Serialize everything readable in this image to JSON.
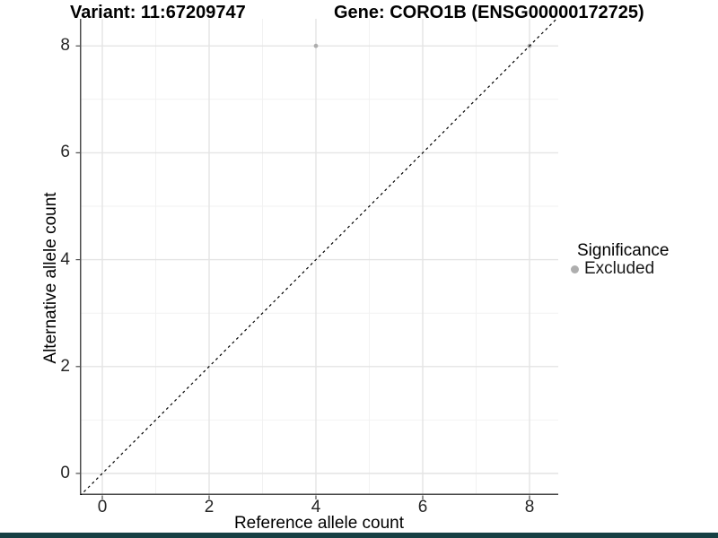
{
  "titles": {
    "left": "Variant: 11:67209747",
    "right": "Gene: CORO1B (ENSG00000172725)"
  },
  "axes": {
    "x": {
      "label": "Reference allele count",
      "ticks": [
        0,
        2,
        4,
        6,
        8
      ],
      "minor": [
        1,
        3,
        5,
        7
      ]
    },
    "y": {
      "label": "Alternative allele count",
      "ticks": [
        0,
        2,
        4,
        6,
        8
      ],
      "minor": [
        1,
        3,
        5,
        7
      ]
    }
  },
  "legend": {
    "title": "Significance",
    "items": [
      {
        "label": "Excluded",
        "color": "#aeaeae"
      }
    ]
  },
  "chart_data": {
    "type": "scatter",
    "title": "Variant: 11:67209747 | Gene: CORO1B (ENSG00000172725)",
    "xlabel": "Reference allele count",
    "ylabel": "Alternative allele count",
    "xlim": [
      -0.43,
      8.56
    ],
    "ylim": [
      -0.4,
      8.51
    ],
    "x_ticks": [
      0,
      2,
      4,
      6,
      8
    ],
    "y_ticks": [
      0,
      2,
      4,
      6,
      8
    ],
    "grid": "major and minor gridlines, white panel background",
    "legend_position": "right-center",
    "series": [
      {
        "name": "Excluded",
        "marker": "circle",
        "color": "#aeaeae",
        "size": 2.4,
        "points": [
          [
            4,
            8
          ],
          [
            8,
            8
          ]
        ]
      }
    ],
    "reference_line": {
      "type": "identity y=x",
      "style": "dashed",
      "color": "#000000"
    }
  },
  "colors": {
    "grid_major": "#e4e4e4",
    "grid_minor": "#f2f2f2",
    "axis_line": "#4d4d4d",
    "point": "#aeaeae",
    "bottom_bar": "#164044"
  }
}
